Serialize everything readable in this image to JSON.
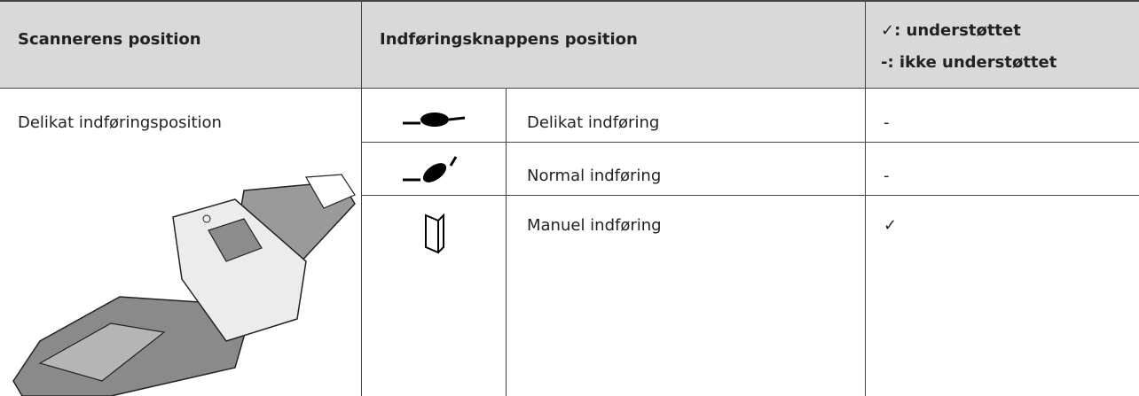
{
  "header": {
    "scanner_position": "Scannerens position",
    "button_position": "Indføringsknappens position",
    "legend": [
      "✓: understøttet",
      "-: ikke understøttet"
    ]
  },
  "rows": [
    {
      "position": "Delikat indføringsposition"
    }
  ],
  "modes": [
    {
      "label": "Delikat indføring",
      "support": "-"
    },
    {
      "label": "Normal indføring",
      "support": "-"
    },
    {
      "label": "Manuel indføring",
      "support": "✓"
    }
  ]
}
